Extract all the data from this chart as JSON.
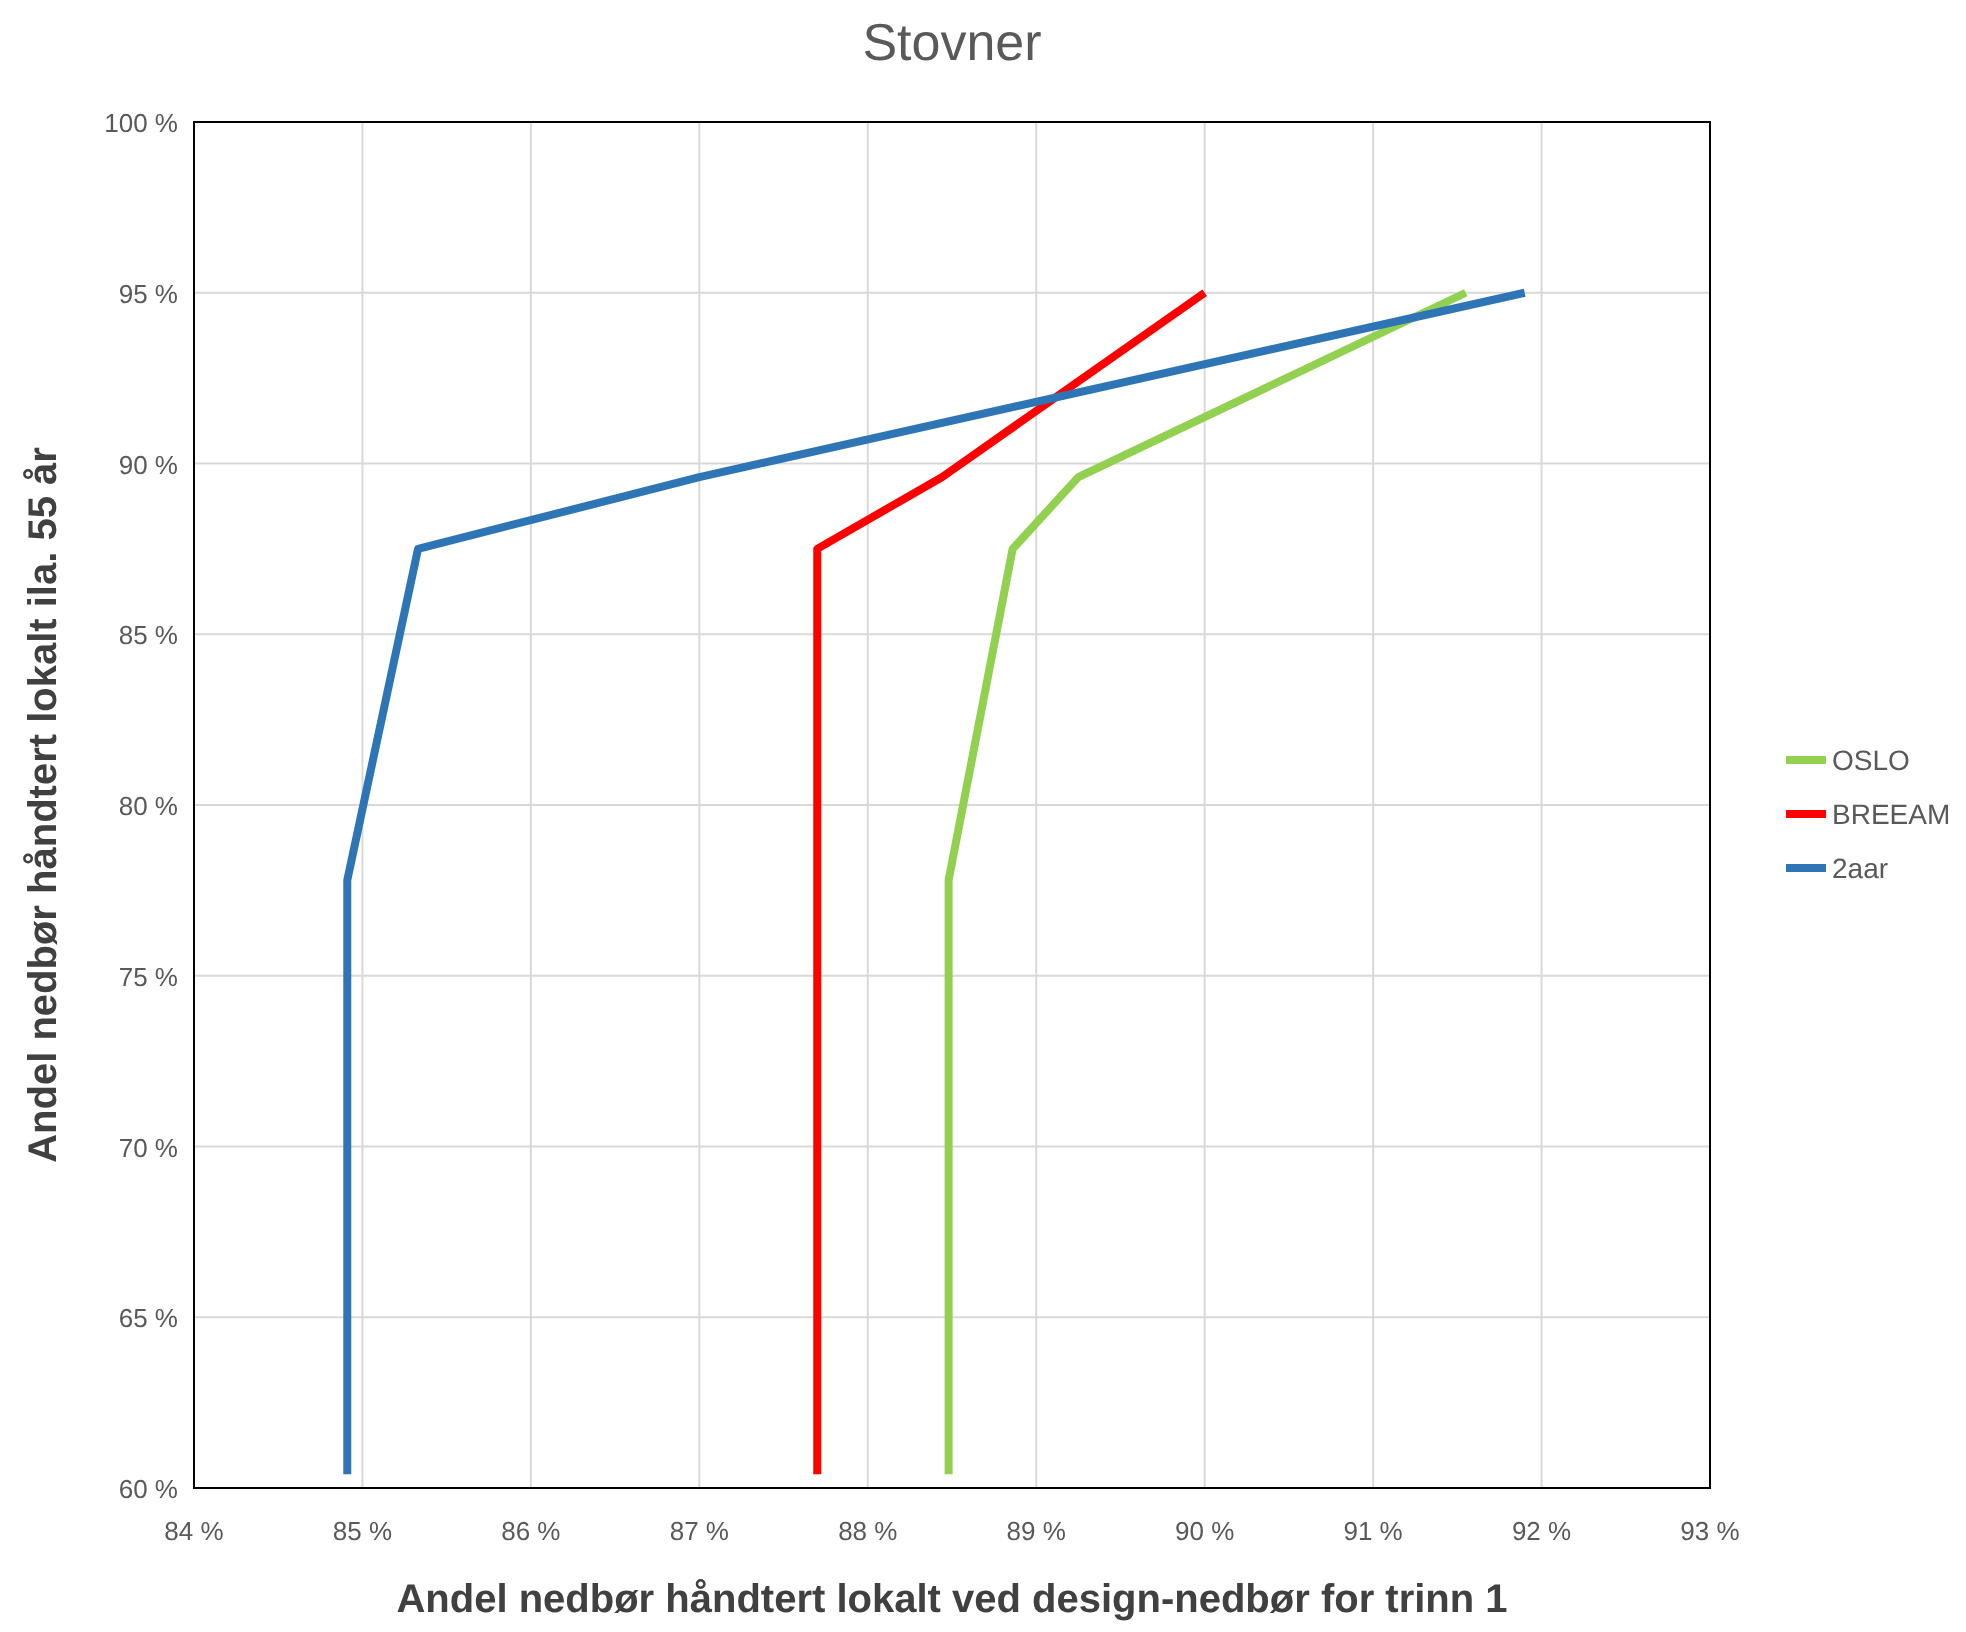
{
  "chart_data": {
    "type": "line",
    "title": "Stovner",
    "xlabel": "Andel nedbør håndtert lokalt ved design-nedbør for trinn 1",
    "ylabel": "Andel nedbør håndtert lokalt ila. 55 år",
    "xlim": [
      84,
      93
    ],
    "ylim": [
      60,
      100
    ],
    "xticks": [
      {
        "value": 84,
        "label": "84 %"
      },
      {
        "value": 85,
        "label": "85 %"
      },
      {
        "value": 86,
        "label": "86 %"
      },
      {
        "value": 87,
        "label": "87 %"
      },
      {
        "value": 88,
        "label": "88 %"
      },
      {
        "value": 89,
        "label": "89 %"
      },
      {
        "value": 90,
        "label": "90 %"
      },
      {
        "value": 91,
        "label": "91 %"
      },
      {
        "value": 92,
        "label": "92 %"
      },
      {
        "value": 93,
        "label": "93 %"
      }
    ],
    "yticks": [
      {
        "value": 60,
        "label": "60 %"
      },
      {
        "value": 65,
        "label": "65 %"
      },
      {
        "value": 70,
        "label": "70 %"
      },
      {
        "value": 75,
        "label": "75 %"
      },
      {
        "value": 80,
        "label": "80 %"
      },
      {
        "value": 85,
        "label": "85 %"
      },
      {
        "value": 90,
        "label": "90 %"
      },
      {
        "value": 95,
        "label": "95 %"
      },
      {
        "value": 100,
        "label": "100 %"
      }
    ],
    "grid": true,
    "legend": "right",
    "marker": "none",
    "line_style": "solid",
    "series": [
      {
        "name": "OSLO",
        "color": "#92d050",
        "x": [
          88.48,
          88.48,
          88.86,
          89.25,
          91.55
        ],
        "values": [
          60.4,
          77.8,
          87.5,
          89.6,
          95
        ]
      },
      {
        "name": "BREEAM",
        "color": "#ff0000",
        "x": [
          87.7,
          87.7,
          88.44,
          90.0
        ],
        "values": [
          60.4,
          87.5,
          89.6,
          95
        ]
      },
      {
        "name": "2aar",
        "color": "#2e75b6",
        "x": [
          84.91,
          84.91,
          85.33,
          87.0,
          91.9
        ],
        "values": [
          60.4,
          77.8,
          87.5,
          89.6,
          95
        ]
      }
    ]
  }
}
